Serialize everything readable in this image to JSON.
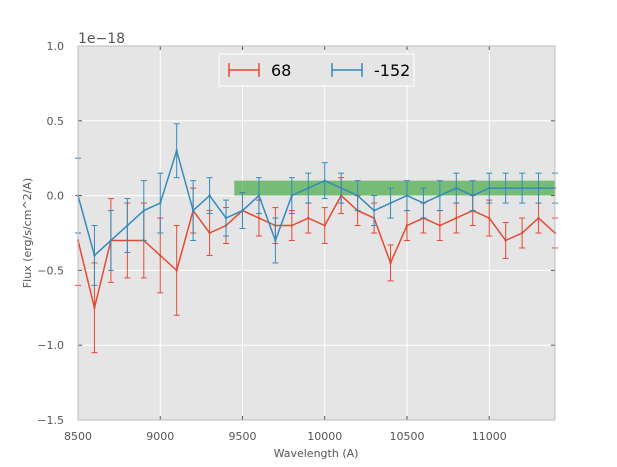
{
  "chart_data": {
    "type": "line",
    "title": "",
    "xlabel": "Wavelength (A)",
    "ylabel": "Flux (erg/s/cm^2/A)",
    "y_offset_text": "1e−18",
    "xlim": [
      8500,
      11400
    ],
    "ylim": [
      -1.5,
      1.0
    ],
    "y_scale": 1e-18,
    "x_ticks": [
      8500,
      9000,
      9500,
      10000,
      10500,
      11000
    ],
    "x_tick_labels": [
      "8500",
      "9000",
      "9500",
      "10000",
      "10500",
      "11000"
    ],
    "y_ticks": [
      -1.5,
      -1.0,
      -0.5,
      0.0,
      0.5,
      1.0
    ],
    "y_tick_labels": [
      "−1.5",
      "−1.0",
      "−0.5",
      "0.0",
      "0.5",
      "1.0"
    ],
    "grid": true,
    "legend_location": "top-center",
    "band": {
      "x_start": 9450,
      "x_end": 11400,
      "y_low": 0.0,
      "y_high": 0.1,
      "color": "#2ca02c"
    },
    "series": [
      {
        "name": "68",
        "color": "#e24a33",
        "x": [
          8500,
          8600,
          8700,
          8800,
          8900,
          9000,
          9100,
          9200,
          9300,
          9400,
          9500,
          9600,
          9700,
          9800,
          9900,
          10000,
          10100,
          10200,
          10300,
          10400,
          10500,
          10600,
          10700,
          10800,
          10900,
          11000,
          11100,
          11200,
          11300,
          11400
        ],
        "y": [
          -0.3,
          -0.75,
          -0.3,
          -0.3,
          -0.3,
          -0.4,
          -0.5,
          -0.1,
          -0.25,
          -0.2,
          -0.1,
          -0.15,
          -0.2,
          -0.2,
          -0.15,
          -0.2,
          0.0,
          -0.1,
          -0.15,
          -0.45,
          -0.2,
          -0.15,
          -0.2,
          -0.15,
          -0.1,
          -0.15,
          -0.3,
          -0.25,
          -0.15,
          -0.25
        ],
        "err": [
          0.3,
          0.3,
          0.28,
          0.25,
          0.25,
          0.25,
          0.3,
          0.15,
          0.15,
          0.12,
          0.12,
          0.12,
          0.12,
          0.1,
          0.1,
          0.12,
          0.12,
          0.1,
          0.1,
          0.12,
          0.1,
          0.1,
          0.1,
          0.1,
          0.1,
          0.12,
          0.12,
          0.1,
          0.1,
          0.1
        ]
      },
      {
        "name": "-152",
        "color": "#348abd",
        "x": [
          8500,
          8600,
          8700,
          8800,
          8900,
          9000,
          9100,
          9200,
          9300,
          9400,
          9500,
          9600,
          9700,
          9800,
          9900,
          10000,
          10100,
          10200,
          10300,
          10400,
          10500,
          10600,
          10700,
          10800,
          10900,
          11000,
          11100,
          11200,
          11300,
          11400
        ],
        "y": [
          0.0,
          -0.4,
          -0.3,
          -0.2,
          -0.1,
          -0.05,
          0.3,
          -0.1,
          0.0,
          -0.15,
          -0.1,
          0.0,
          -0.3,
          0.0,
          0.05,
          0.1,
          0.05,
          0.0,
          -0.1,
          -0.05,
          0.0,
          -0.05,
          0.0,
          0.05,
          0.0,
          0.05,
          0.05,
          0.05,
          0.05,
          0.05
        ],
        "err": [
          0.25,
          0.2,
          0.2,
          0.18,
          0.2,
          0.2,
          0.18,
          0.2,
          0.12,
          0.12,
          0.12,
          0.12,
          0.15,
          0.12,
          0.1,
          0.12,
          0.1,
          0.1,
          0.1,
          0.1,
          0.1,
          0.1,
          0.1,
          0.1,
          0.1,
          0.1,
          0.1,
          0.1,
          0.1,
          0.1
        ]
      }
    ]
  }
}
